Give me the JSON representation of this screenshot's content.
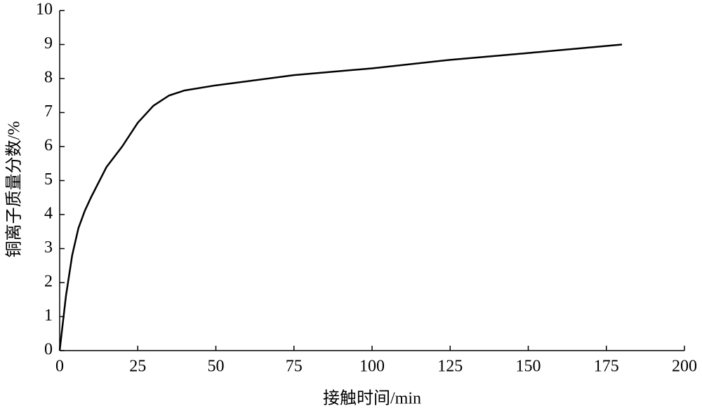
{
  "chart_data": {
    "type": "line",
    "x_label": "接触时间/min",
    "y_label": "铜离子质量分数/%",
    "x": [
      0,
      2,
      4,
      6,
      8,
      10,
      15,
      20,
      25,
      30,
      35,
      40,
      50,
      75,
      100,
      125,
      150,
      180
    ],
    "series": [
      {
        "name": "铜离子质量分数",
        "color": "#000000",
        "values": [
          0,
          1.6,
          2.8,
          3.6,
          4.1,
          4.5,
          5.4,
          6.0,
          6.7,
          7.2,
          7.5,
          7.65,
          7.8,
          8.1,
          8.3,
          8.55,
          8.75,
          9.0
        ]
      }
    ],
    "xlim": [
      0,
      200
    ],
    "xticks": [
      0,
      25,
      50,
      75,
      100,
      125,
      150,
      175,
      200
    ],
    "ylim": [
      0,
      10
    ],
    "yticks": [
      0,
      1,
      2,
      3,
      4,
      5,
      6,
      7,
      8,
      9,
      10
    ],
    "grid": false
  }
}
